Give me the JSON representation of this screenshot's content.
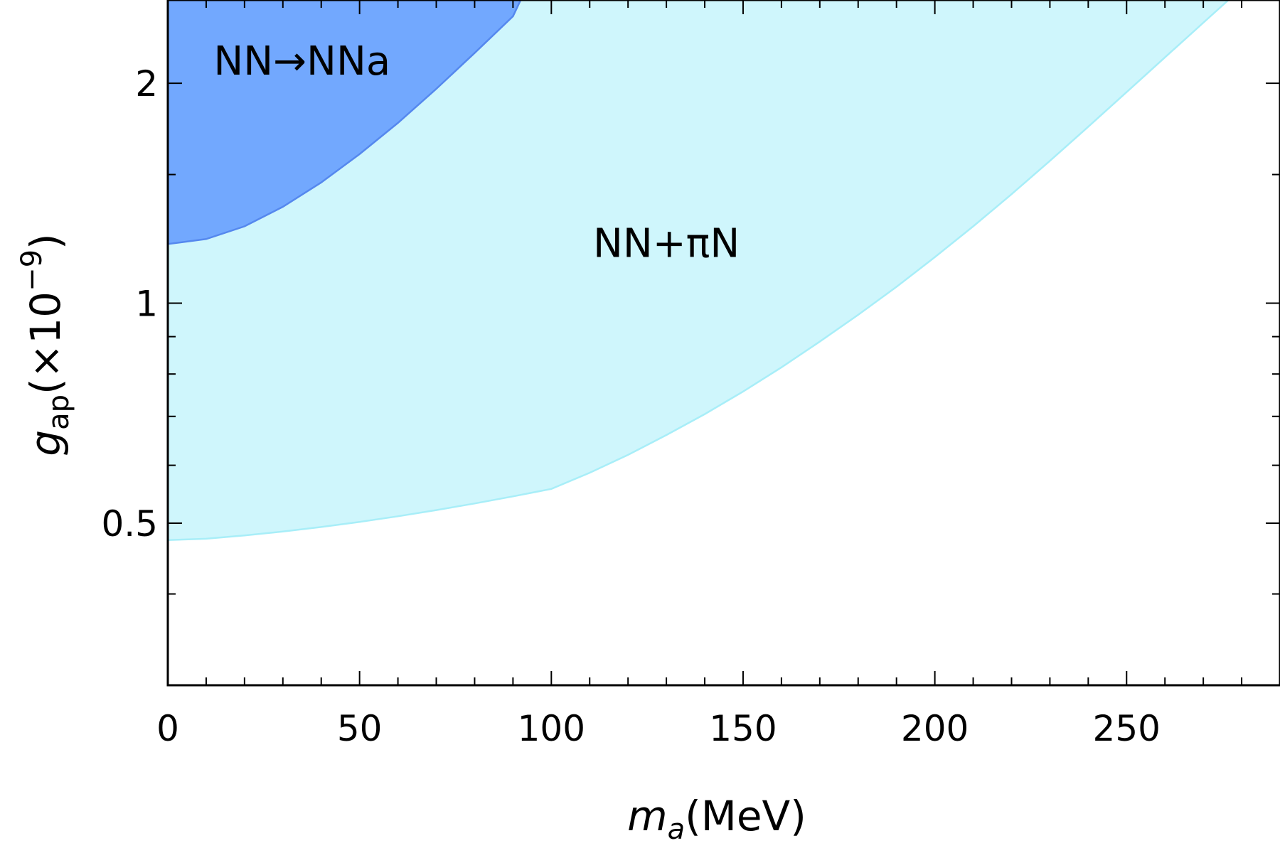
{
  "chart_data": {
    "type": "area",
    "xlabel": {
      "var": "m",
      "sub": "a",
      "unit": "(MeV)"
    },
    "ylabel": {
      "var": "g",
      "sub": "ap",
      "unit_pre": "(×10",
      "unit_exp": "−9",
      "unit_post": ")"
    },
    "xlim": [
      0,
      290
    ],
    "ylim": [
      0.3,
      2.6
    ],
    "y_scale": "log",
    "x_ticks": [
      0,
      50,
      100,
      150,
      200,
      250
    ],
    "x_tick_labels": [
      "0",
      "50",
      "100",
      "150",
      "200",
      "250"
    ],
    "y_ticks": [
      0.5,
      1,
      2
    ],
    "y_tick_labels": [
      "0.5",
      "1",
      "2"
    ],
    "y_minor_ticks": [
      0.4,
      0.6,
      0.7,
      0.8,
      0.9,
      1.5
    ],
    "grid": false,
    "series": [
      {
        "name": "NN+πN",
        "color": "#cff6fc",
        "edge_color": "#a8eef8",
        "x": [
          0,
          10,
          20,
          30,
          40,
          50,
          60,
          70,
          80,
          90,
          100,
          110,
          120,
          130,
          140,
          150,
          160,
          170,
          180,
          190,
          200,
          210,
          220,
          230,
          240,
          250,
          260,
          270,
          280,
          284
        ],
        "y": [
          0.474,
          0.476,
          0.481,
          0.487,
          0.494,
          0.502,
          0.511,
          0.521,
          0.532,
          0.544,
          0.557,
          0.586,
          0.62,
          0.66,
          0.705,
          0.757,
          0.817,
          0.886,
          0.964,
          1.053,
          1.156,
          1.274,
          1.41,
          1.566,
          1.744,
          1.945,
          2.17,
          2.42,
          2.7,
          2.81
        ]
      },
      {
        "name": "NN→NNa",
        "color": "#72a8fe",
        "edge_color": "#5588ee",
        "x": [
          0,
          10,
          20,
          30,
          40,
          50,
          60,
          70,
          80,
          90,
          92
        ],
        "y": [
          1.205,
          1.224,
          1.274,
          1.355,
          1.463,
          1.6,
          1.765,
          1.965,
          2.2,
          2.47,
          2.6
        ]
      }
    ],
    "annotations": [
      {
        "text": "NN→NNa",
        "x": 35,
        "y": 2.15
      },
      {
        "text": "NN+πN",
        "x": 130,
        "y": 1.21
      }
    ]
  }
}
